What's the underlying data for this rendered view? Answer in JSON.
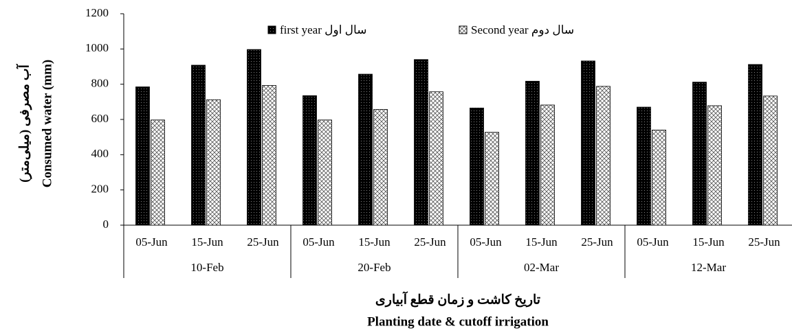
{
  "chart_data": {
    "type": "bar",
    "y_label": "Consumed water (mm)",
    "y_label_fa": "آب مصرفی (میلی‌متر)",
    "x_label": "Planting date & cutoff irrigation",
    "x_label_fa": "تاریخ کاشت و زمان قطع آبیاری",
    "categories": [
      "05-Jun",
      "15-Jun",
      "25-Jun",
      "05-Jun",
      "15-Jun",
      "25-Jun",
      "05-Jun",
      "15-Jun",
      "25-Jun",
      "05-Jun",
      "15-Jun",
      "25-Jun"
    ],
    "groups": [
      "10-Feb",
      "20-Feb",
      "02-Mar",
      "12-Mar"
    ],
    "series": [
      {
        "name": "first year سال اول",
        "color": "#000000",
        "values": [
          785,
          908,
          997,
          735,
          857,
          940,
          665,
          817,
          932,
          670,
          812,
          912
        ]
      },
      {
        "name": "Second year سال دوم",
        "color": "#ffffff",
        "values": [
          597,
          712,
          793,
          597,
          657,
          757,
          527,
          682,
          788,
          540,
          678,
          733
        ]
      }
    ],
    "ylim": [
      0,
      1200
    ],
    "yticks": [
      0,
      200,
      400,
      600,
      800,
      1000,
      1200
    ],
    "grid": false
  }
}
